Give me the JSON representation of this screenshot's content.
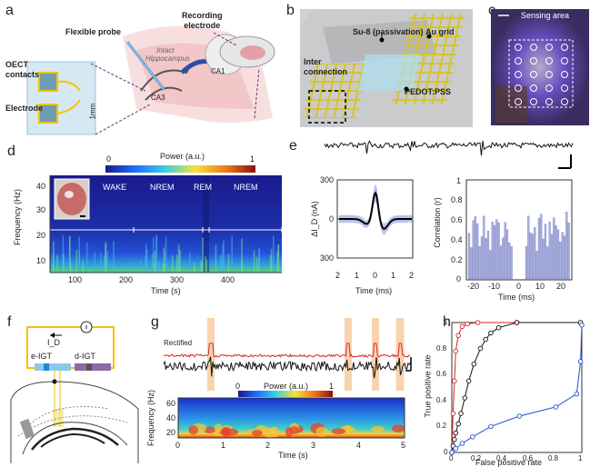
{
  "panels": {
    "a": "a",
    "b": "b",
    "c": "c",
    "d": "d",
    "e": "e",
    "f": "f",
    "g": "g",
    "h": "h"
  },
  "a": {
    "flexible_probe": "Flexible probe",
    "recording_electrode": "Recording\nelectrode",
    "intact": "Intact",
    "hippocampus": "Hippocampus",
    "oect_contacts": "OECT\ncontacts",
    "electrode": "Electrode",
    "ca1": "CA1",
    "ca3": "CA3",
    "scale": "1mm"
  },
  "b": {
    "su8": "Su-8 (passivation)",
    "au_grid": "Au grid",
    "inter": "Inter\nconnection",
    "pedot": "PEDOT:PSS"
  },
  "c": {
    "sensing": "Sensing area"
  },
  "d": {
    "power_label": "Power (a.u.)",
    "cb_min": "0",
    "cb_max": "1",
    "ylabel": "Frequency (Hz)",
    "xlabel": "Time (s)",
    "yticks": [
      "40",
      "30",
      "20",
      "10"
    ],
    "xticks": [
      "100",
      "200",
      "300",
      "400"
    ],
    "states": [
      "WAKE",
      "NREM",
      "REM",
      "NREM"
    ]
  },
  "e": {
    "ylabel": "ΔI_D (nA)",
    "xlabel1": "Time (ms)",
    "yticks1": [
      "300",
      "0",
      "300"
    ],
    "xticks1": [
      "2",
      "1",
      "0",
      "1",
      "2"
    ],
    "ylabel2": "Correlation (r)",
    "xlabel2": "Time (ms)",
    "yticks2": [
      "1",
      "0.8",
      "0.6",
      "0.4",
      "0.2",
      "0"
    ],
    "xticks2": [
      "-20",
      "-10",
      "0",
      "10",
      "20"
    ]
  },
  "f": {
    "id": "I_D",
    "e_igt": "e-IGT",
    "d_igt": "d-IGT"
  },
  "g": {
    "rectified": "Rectified",
    "power_label": "Power (a.u.)",
    "cb_min": "0",
    "cb_max": "1",
    "ylabel": "Frequency (Hz)",
    "xlabel": "Time (s)",
    "yticks": [
      "60",
      "40",
      "20"
    ],
    "xticks": [
      "0",
      "1",
      "2",
      "3",
      "4",
      "5"
    ]
  },
  "h": {
    "ylabel": "True positive rate",
    "xlabel": "False positive rate",
    "yticks": [
      "1",
      "0.8",
      "0.6",
      "0.4",
      "0.2",
      "0"
    ],
    "xticks": [
      "0",
      "0.2",
      "0.4",
      "0.6",
      "0.8",
      "1"
    ]
  },
  "colors": {
    "red": "#d62728",
    "blue": "#1f4fd1",
    "black": "#111111",
    "orange": "#f4c79a",
    "gold": "#f2d23b"
  },
  "chart_data": [
    {
      "type": "line",
      "title": "",
      "xlabel": "False positive rate",
      "ylabel": "True positive rate",
      "xlim": [
        0,
        1
      ],
      "ylim": [
        0,
        1
      ],
      "series": [
        {
          "values": [
            [
              0,
              0
            ],
            [
              0.01,
              0.3
            ],
            [
              0.02,
              0.55
            ],
            [
              0.03,
              0.78
            ],
            [
              0.05,
              0.9
            ],
            [
              0.08,
              0.97
            ],
            [
              0.12,
              0.99
            ],
            [
              0.2,
              1
            ],
            [
              0.5,
              1
            ],
            [
              0.99,
              1
            ]
          ]
        },
        {
          "values": [
            [
              0,
              0
            ],
            [
              0.01,
              0.05
            ],
            [
              0.02,
              0.1
            ],
            [
              0.03,
              0.15
            ],
            [
              0.05,
              0.22
            ],
            [
              0.07,
              0.3
            ],
            [
              0.1,
              0.42
            ],
            [
              0.13,
              0.55
            ],
            [
              0.17,
              0.68
            ],
            [
              0.22,
              0.8
            ],
            [
              0.26,
              0.87
            ],
            [
              0.3,
              0.92
            ],
            [
              0.36,
              0.96
            ],
            [
              0.5,
              1
            ],
            [
              0.99,
              1
            ]
          ]
        },
        {
          "values": [
            [
              0,
              0
            ],
            [
              0.03,
              0.03
            ],
            [
              0.08,
              0.07
            ],
            [
              0.16,
              0.12
            ],
            [
              0.3,
              0.2
            ],
            [
              0.52,
              0.28
            ],
            [
              0.8,
              0.35
            ],
            [
              0.96,
              0.45
            ],
            [
              0.99,
              0.7
            ],
            [
              1,
              0.98
            ]
          ]
        }
      ]
    }
  ]
}
